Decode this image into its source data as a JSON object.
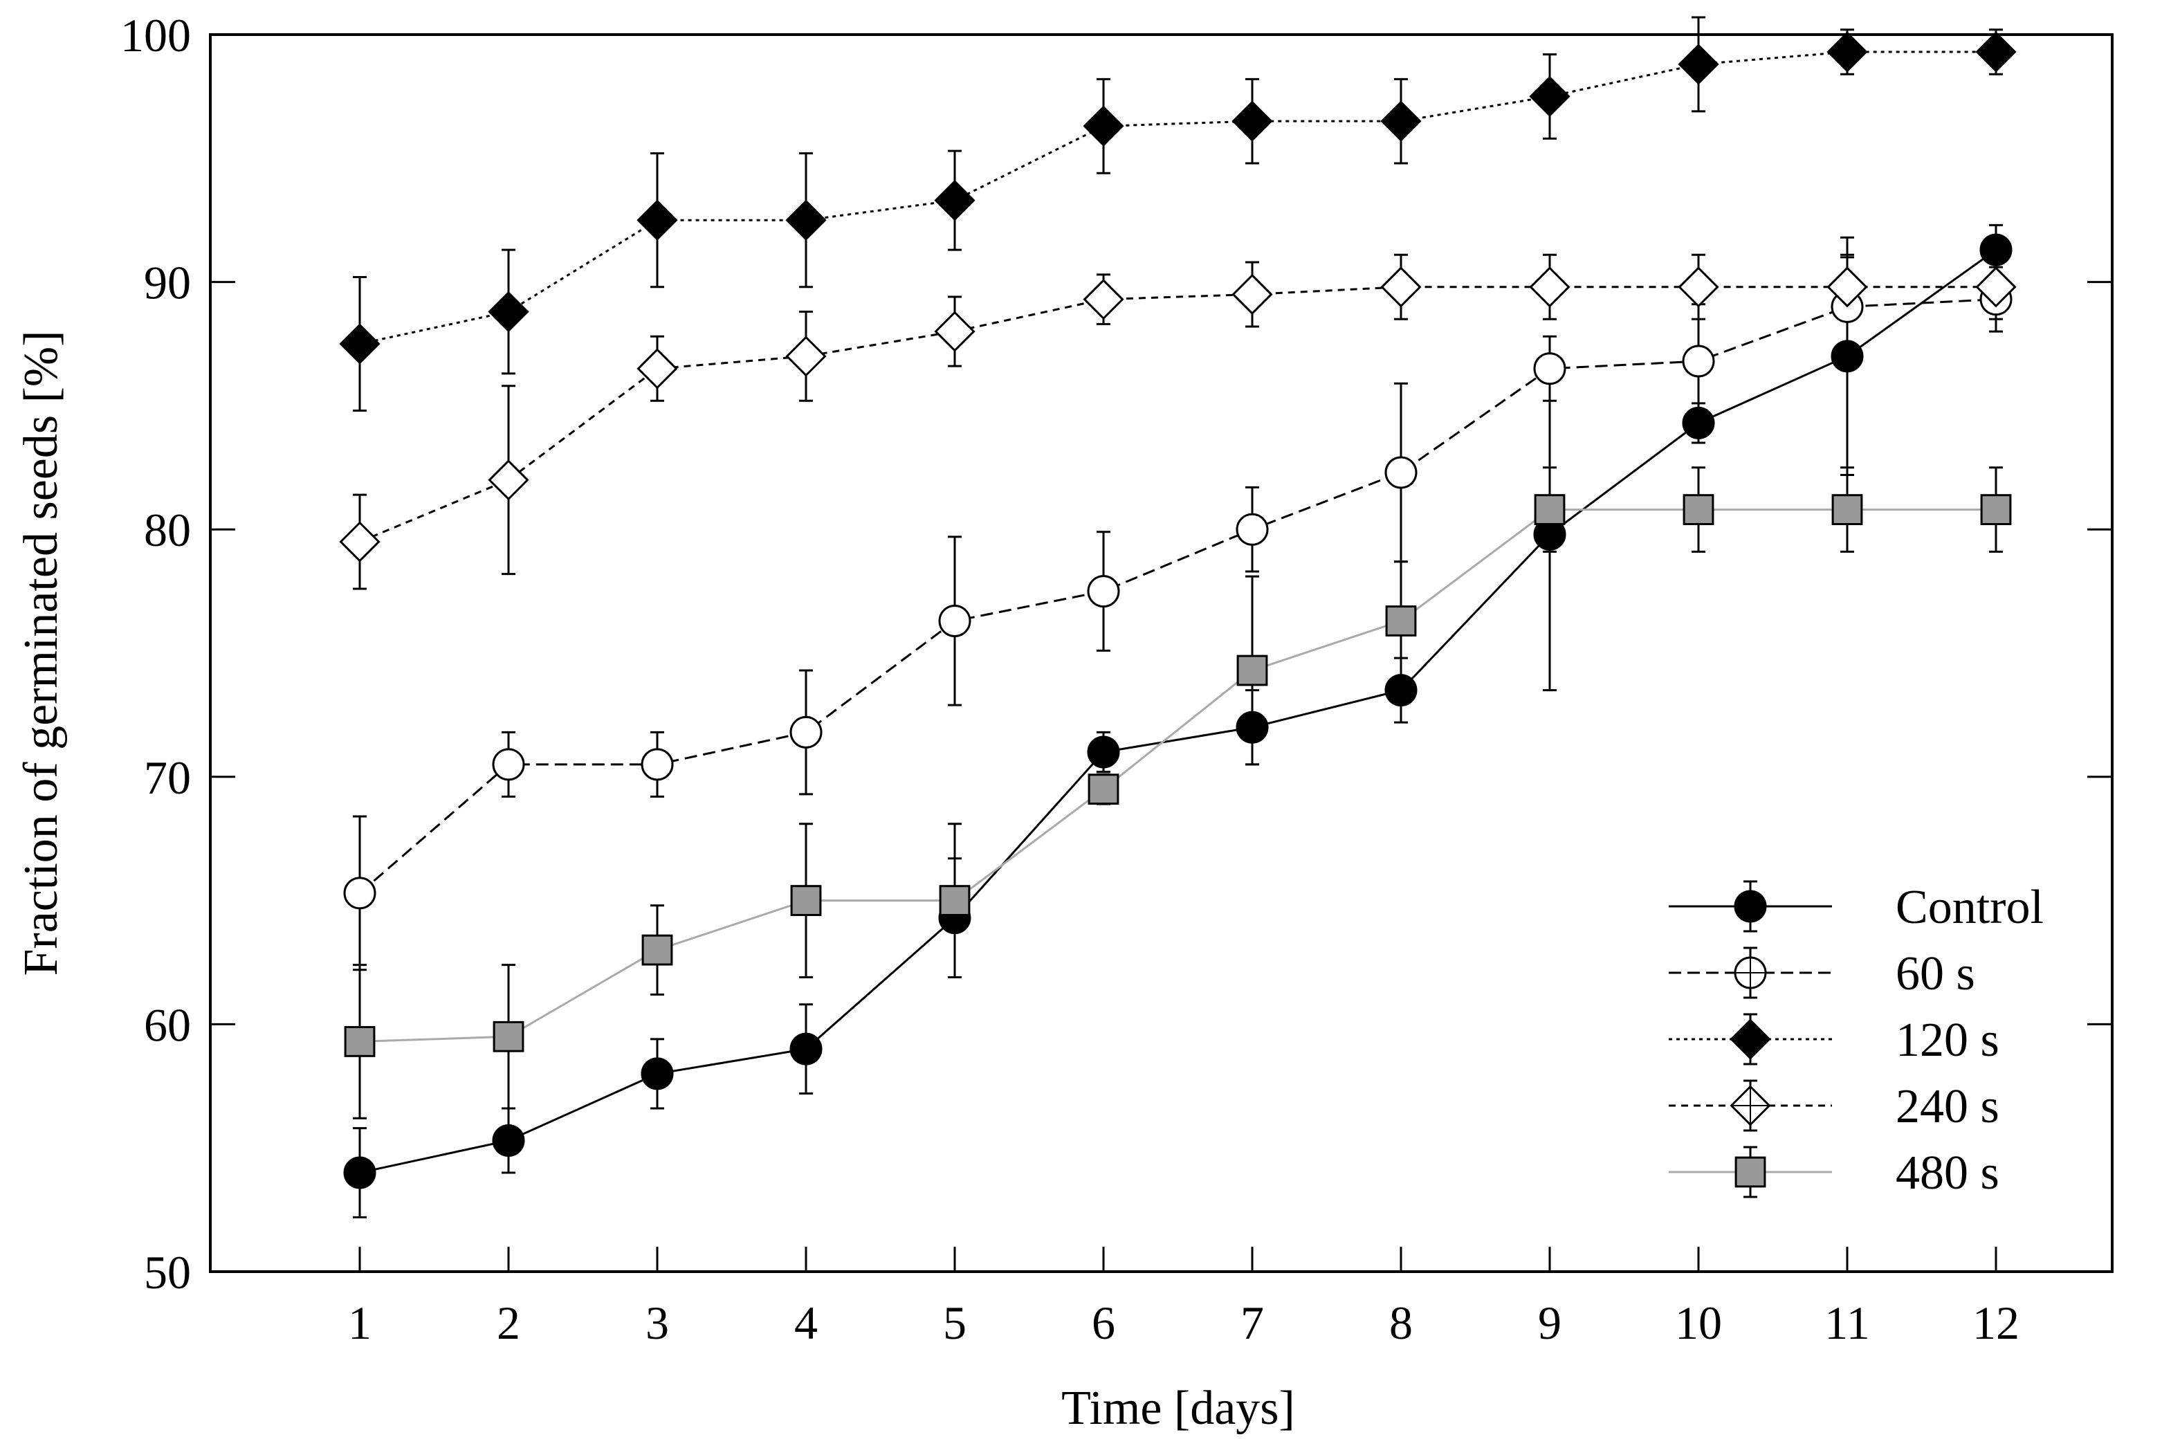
{
  "chart_data": {
    "type": "line",
    "title": "",
    "xlabel": "Time [days]",
    "ylabel": "Fraction of germinated seeds [%]",
    "xlim": [
      0,
      13
    ],
    "ylim": [
      50,
      100
    ],
    "x": [
      1,
      2,
      3,
      4,
      5,
      6,
      7,
      8,
      9,
      10,
      11,
      12
    ],
    "x_tick_labels": [
      "1",
      "2",
      "3",
      "4",
      "5",
      "6",
      "7",
      "8",
      "9",
      "10",
      "11",
      "12"
    ],
    "y_ticks": [
      50,
      60,
      70,
      80,
      90,
      100
    ],
    "y_tick_labels": [
      "50",
      "60",
      "70",
      "80",
      "90",
      "100"
    ],
    "grid": false,
    "legend_position": "bottom-right",
    "series": [
      {
        "name": "Control",
        "marker": "filled-circle",
        "line": "solid",
        "color": "#000000",
        "values": [
          54.0,
          55.3,
          58.0,
          59.0,
          64.3,
          71.0,
          72.0,
          73.5,
          79.8,
          84.3,
          87.0,
          91.3
        ],
        "errors": [
          1.8,
          1.3,
          1.4,
          1.8,
          2.4,
          0.8,
          1.5,
          1.3,
          6.3,
          0.8,
          4.8,
          1.0
        ]
      },
      {
        "name": "60 s",
        "marker": "open-circle",
        "line": "dashed",
        "color": "#000000",
        "values": [
          65.3,
          70.5,
          70.5,
          71.8,
          76.3,
          77.5,
          80.0,
          82.3,
          86.5,
          86.8,
          89.0,
          89.3
        ],
        "errors": [
          3.1,
          1.3,
          1.3,
          2.5,
          3.4,
          2.4,
          1.7,
          3.6,
          1.3,
          2.3,
          2.0,
          1.3
        ]
      },
      {
        "name": "120 s",
        "marker": "filled-diamond",
        "line": "dotted",
        "color": "#000000",
        "values": [
          87.5,
          88.8,
          92.5,
          92.5,
          93.3,
          96.3,
          96.5,
          96.5,
          97.5,
          98.8,
          99.3,
          99.3
        ],
        "errors": [
          2.7,
          2.5,
          2.7,
          2.7,
          2.0,
          1.9,
          1.7,
          1.7,
          1.7,
          1.9,
          0.9,
          0.9
        ]
      },
      {
        "name": "240 s",
        "marker": "open-diamond",
        "line": "short-dashed",
        "color": "#000000",
        "values": [
          79.5,
          82.0,
          86.5,
          87.0,
          88.0,
          89.3,
          89.5,
          89.8,
          89.8,
          89.8,
          89.8,
          89.8
        ],
        "errors": [
          1.9,
          3.8,
          1.3,
          1.8,
          1.4,
          1.0,
          1.3,
          1.3,
          1.3,
          1.3,
          1.3,
          1.3
        ]
      },
      {
        "name": "480 s",
        "marker": "gray-square",
        "line": "solid",
        "color": "#999999",
        "values": [
          59.3,
          59.5,
          63.0,
          65.0,
          65.0,
          69.5,
          74.3,
          76.3,
          80.8,
          80.8,
          80.8,
          80.8
        ],
        "errors": [
          3.1,
          2.9,
          1.8,
          3.1,
          3.1,
          0.6,
          3.8,
          2.4,
          1.7,
          1.7,
          1.7,
          1.7
        ]
      }
    ]
  },
  "colors": {
    "axis": "#000000",
    "gray_fill": "#999999",
    "gray_line": "#aaaaaa"
  }
}
